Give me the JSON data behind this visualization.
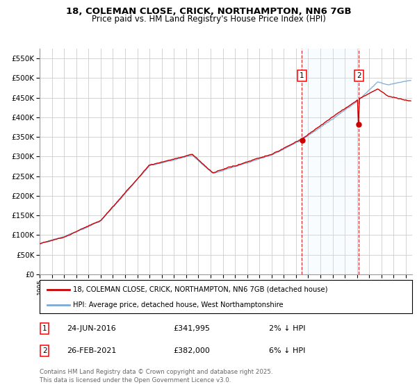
{
  "title_line1": "18, COLEMAN CLOSE, CRICK, NORTHAMPTON, NN6 7GB",
  "title_line2": "Price paid vs. HM Land Registry's House Price Index (HPI)",
  "ylabel_values": [
    0,
    50000,
    100000,
    150000,
    200000,
    250000,
    300000,
    350000,
    400000,
    450000,
    500000,
    550000
  ],
  "ylim": [
    0,
    575000
  ],
  "xlim_start": 1995.0,
  "xlim_end": 2025.5,
  "hpi_color": "#7aaad4",
  "price_color": "#cc0000",
  "shade_color": "#ddeeff",
  "marker1_x": 2016.48,
  "marker1_y": 341995,
  "marker1_label": "1",
  "marker1_date": "24-JUN-2016",
  "marker1_price": "£341,995",
  "marker1_note": "2% ↓ HPI",
  "marker2_x": 2021.15,
  "marker2_y": 382000,
  "marker2_label": "2",
  "marker2_date": "26-FEB-2021",
  "marker2_price": "£382,000",
  "marker2_note": "6% ↓ HPI",
  "legend_label1": "18, COLEMAN CLOSE, CRICK, NORTHAMPTON, NN6 7GB (detached house)",
  "legend_label2": "HPI: Average price, detached house, West Northamptonshire",
  "footer_line1": "Contains HM Land Registry data © Crown copyright and database right 2025.",
  "footer_line2": "This data is licensed under the Open Government Licence v3.0.",
  "background_color": "#ffffff",
  "grid_color": "#cccccc",
  "plot_bg_color": "#ffffff"
}
